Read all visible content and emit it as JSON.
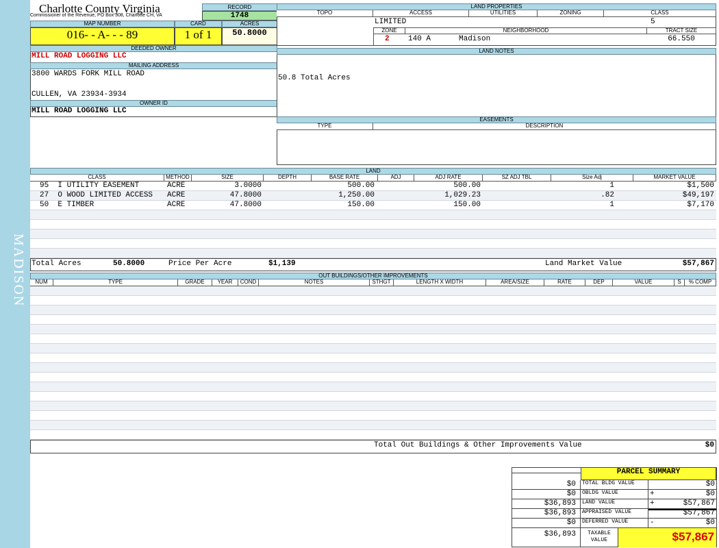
{
  "side_label": "MADISON",
  "header": {
    "title": "Charlotte County Virginia",
    "subtitle": "Commissioner of the Revenue, PO Box 308, Charlotte CH, VA"
  },
  "record": {
    "label": "RECORD",
    "value": "1748"
  },
  "map_number": {
    "label": "MAP NUMBER",
    "value": "016- - A- - - 89"
  },
  "card": {
    "label": "CARD",
    "value": "1 of 1"
  },
  "acres": {
    "label": "ACRES",
    "value": "50.8000"
  },
  "deeded_owner": {
    "label": "DEEDED OWNER",
    "value": "MILL ROAD LOGGING LLC"
  },
  "mailing_address": {
    "label": "MAILING ADDRESS",
    "lines": [
      "3800 WARDS FORK MILL ROAD",
      "CULLEN, VA 23934-3934"
    ]
  },
  "owner_id": {
    "label": "OWNER ID",
    "value": "MILL ROAD LOGGING LLC"
  },
  "land_properties": {
    "title": "LAND PROPERTIES",
    "headers": [
      "TOPO",
      "ACCESS",
      "UTILITIES",
      "ZONING",
      "CLASS"
    ],
    "access": "LIMITED",
    "class": "5",
    "zone_label": "ZONE",
    "zone": "2",
    "zone_code": "140 A",
    "neighborhood_label": "NEIGHBORHOOD",
    "neighborhood": "Madison",
    "tract_size_label": "TRACT SIZE",
    "tract_size": "66.550"
  },
  "land_notes": {
    "title": "LAND NOTES",
    "text": "50.8 Total Acres"
  },
  "easements": {
    "title": "EASEMENTS",
    "headers": [
      "TYPE",
      "DESCRIPTION"
    ]
  },
  "land": {
    "title": "LAND",
    "headers": [
      "CLASS",
      "METHOD",
      "SIZE",
      "DEPTH",
      "BASE RATE",
      "ADJ",
      "ADJ RATE",
      "SZ ADJ TBL",
      "Size Adj",
      "MARKET VALUE"
    ],
    "rows": [
      {
        "class": "95  I UTILITY EASEMENT",
        "method": "ACRE",
        "size": "3.0000",
        "base_rate": "500.00",
        "adj_rate": "500.00",
        "size_adj": "1",
        "market_value": "$1,500"
      },
      {
        "class": "27  O WOOD LIMITED ACCESS",
        "method": "ACRE",
        "size": "47.8000",
        "base_rate": "1,250.00",
        "adj_rate": "1,029.23",
        "size_adj": ".82",
        "market_value": "$49,197"
      },
      {
        "class": "50  E TIMBER",
        "method": "ACRE",
        "size": "47.8000",
        "base_rate": "150.00",
        "adj_rate": "150.00",
        "size_adj": "1",
        "market_value": "$7,170"
      }
    ],
    "total_acres_label": "Total Acres",
    "total_acres": "50.8000",
    "price_per_acre_label": "Price Per Acre",
    "price_per_acre": "$1,139",
    "market_value_label": "Land Market Value",
    "market_value": "$57,867"
  },
  "out_buildings": {
    "title": "OUT BUILDINGS/OTHER IMPROVEMENTS",
    "headers": [
      "NUM",
      "TYPE",
      "GRADE",
      "YEAR",
      "COND",
      "NOTES",
      "STHGT",
      "LENGTH X WIDTH",
      "AREA/SIZE",
      "RATE",
      "DEP",
      "VALUE",
      "S",
      "% COMP"
    ],
    "total_label": "Total Out Buildings & Other Improvements Value",
    "total": "$0"
  },
  "parcel_summary": {
    "title": "PARCEL SUMMARY",
    "rows": [
      {
        "prior": "$0",
        "label": "TOTAL BLDG VALUE",
        "value": "$0"
      },
      {
        "prior": "$0",
        "label": "OBLDG VALUE",
        "sign": "+",
        "value": "$0"
      },
      {
        "prior": "$36,893",
        "label": "LAND VALUE",
        "sign": "+",
        "value": "$57,867"
      },
      {
        "prior": "$36,893",
        "label": "APPRAISED VALUE",
        "value": "$57,867"
      },
      {
        "prior": "$0",
        "label": "DEFERRED VALUE",
        "sign": "-",
        "value": "$0"
      }
    ],
    "taxable_prior": "$36,893",
    "taxable_label": "TAXABLE VALUE",
    "taxable_value": "$57,867"
  }
}
